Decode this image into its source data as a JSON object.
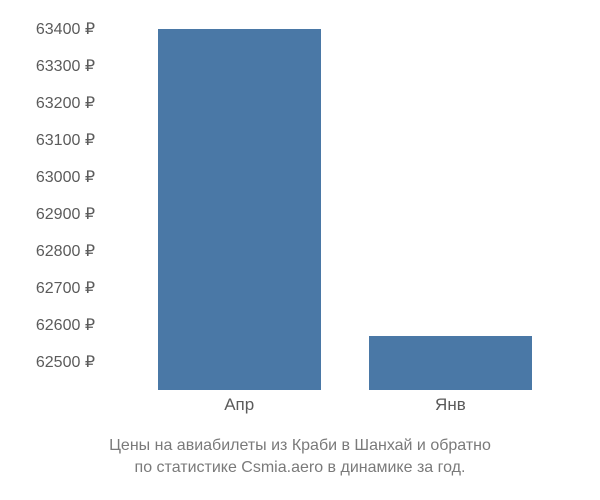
{
  "chart": {
    "type": "bar",
    "y_axis": {
      "min": 62425,
      "max": 63450,
      "ticks": [
        {
          "value": 62500,
          "label": "62500 ₽"
        },
        {
          "value": 62600,
          "label": "62600 ₽"
        },
        {
          "value": 62700,
          "label": "62700 ₽"
        },
        {
          "value": 62800,
          "label": "62800 ₽"
        },
        {
          "value": 62900,
          "label": "62900 ₽"
        },
        {
          "value": 63000,
          "label": "63000 ₽"
        },
        {
          "value": 63100,
          "label": "63100 ₽"
        },
        {
          "value": 63200,
          "label": "63200 ₽"
        },
        {
          "value": 63300,
          "label": "63300 ₽"
        },
        {
          "value": 63400,
          "label": "63400 ₽"
        }
      ],
      "tick_color": "#5b5b5b",
      "tick_fontsize": 16
    },
    "x_axis": {
      "categories": [
        "Апр",
        "Янв"
      ],
      "tick_color": "#5b5b5b",
      "tick_fontsize": 17
    },
    "bars": [
      {
        "category": "Апр",
        "value": 63400,
        "color": "#4a78a6",
        "left_frac": 0.12,
        "width_frac": 0.34
      },
      {
        "category": "Янв",
        "value": 62570,
        "color": "#4a78a6",
        "left_frac": 0.56,
        "width_frac": 0.34
      }
    ],
    "background_color": "#ffffff",
    "caption_line1": "Цены на авиабилеты из Краби в Шанхай и обратно",
    "caption_line2": "по статистике Csmia.aero в динамике за год.",
    "caption_color": "#7a7a7a",
    "caption_fontsize": 16
  }
}
